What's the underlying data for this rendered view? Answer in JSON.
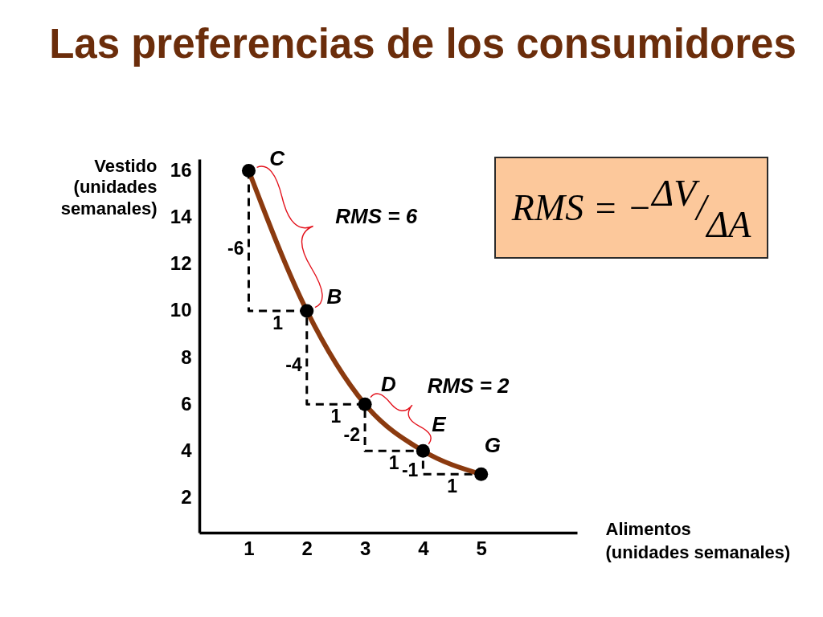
{
  "chart_data": {
    "type": "line",
    "title": "Las preferencias de los consumidores",
    "xlabel": "Alimentos (unidades semanales)",
    "ylabel": "Vestido (unidades semanales)",
    "x": [
      1,
      2,
      3,
      4,
      5
    ],
    "series": [
      {
        "type": "step",
        "color": "#000000",
        "line_style": "dashed",
        "values": [
          16,
          10,
          6,
          4,
          3
        ]
      },
      {
        "type": "line",
        "color": "#8b3a0f",
        "values": [
          16,
          10,
          6,
          4,
          3
        ]
      },
      {
        "type": "scatter",
        "color": "#000000",
        "marker": "circle",
        "values": [
          16,
          10,
          6,
          4,
          3
        ]
      }
    ],
    "xlim": [
      0.15,
      6.65
    ],
    "xticks": [
      1,
      2,
      3,
      4,
      5
    ],
    "ylim": [
      0.5,
      16.5
    ],
    "yticks": [
      2,
      4,
      6,
      8,
      10,
      12,
      14,
      16
    ],
    "annotations": [
      {
        "text": "C",
        "x": 1,
        "y": 16
      },
      {
        "text": "B",
        "x": 2,
        "y": 10
      },
      {
        "text": "D",
        "x": 3,
        "y": 6
      },
      {
        "text": "E",
        "x": 4,
        "y": 4
      },
      {
        "text": "G",
        "x": 5,
        "y": 3
      },
      {
        "text": "RMS = 6",
        "x": 1.5,
        "y": 12.9
      },
      {
        "text": "RMS = 2",
        "x": 3.5,
        "y": 4.8
      },
      {
        "text": "-6",
        "x": 1,
        "y": 13
      },
      {
        "text": "1",
        "x": 1.5,
        "y": 10
      },
      {
        "text": "-4",
        "x": 2,
        "y": 8
      },
      {
        "text": "1",
        "x": 2.5,
        "y": 6
      },
      {
        "text": "-2",
        "x": 3,
        "y": 5
      },
      {
        "text": "1",
        "x": 3.5,
        "y": 4
      },
      {
        "text": "-1",
        "x": 4,
        "y": 3.5
      },
      {
        "text": "1",
        "x": 4.5,
        "y": 3
      },
      "RMS = −$^{ΔV}$/$_{ΔA}$"
    ]
  }
}
